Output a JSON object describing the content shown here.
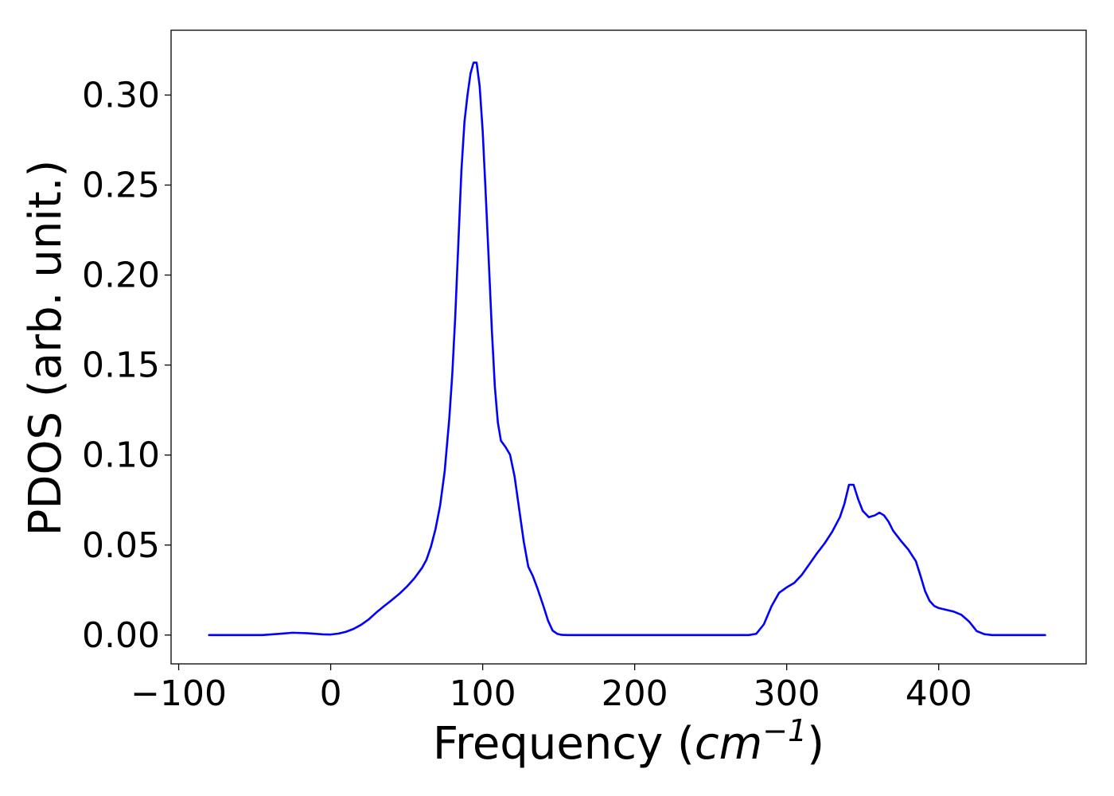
{
  "chart_data": {
    "type": "line",
    "title": "",
    "xlabel_prefix": "Frequency (",
    "xlabel_unit_base": "cm",
    "xlabel_unit_exponent": "−1",
    "xlabel_suffix": ")",
    "ylabel": "PDOS (arb. unit.)",
    "xlim": [
      -105,
      497
    ],
    "ylim": [
      -0.016,
      0.336
    ],
    "grid": false,
    "legend": "none",
    "xticks": [
      -100,
      0,
      100,
      200,
      300,
      400
    ],
    "xtick_labels": [
      "−100",
      "0",
      "100",
      "200",
      "300",
      "400"
    ],
    "yticks": [
      0.0,
      0.05,
      0.1,
      0.15,
      0.2,
      0.25,
      0.3
    ],
    "ytick_labels": [
      "0.00",
      "0.05",
      "0.10",
      "0.15",
      "0.20",
      "0.25",
      "0.30"
    ],
    "colors": {
      "line": "#0000ff",
      "frame": "#000000",
      "background": "#ffffff"
    },
    "series": [
      {
        "x": [
          -80,
          -60,
          -45,
          -35,
          -25,
          -15,
          -5,
          0,
          5,
          10,
          15,
          20,
          25,
          30,
          35,
          40,
          45,
          50,
          55,
          60,
          63,
          66,
          69,
          72,
          75,
          78,
          80,
          82,
          84,
          86,
          88,
          90,
          92,
          94,
          96,
          98,
          100,
          102,
          104,
          106,
          108,
          110,
          112,
          115,
          118,
          121,
          124,
          127,
          130,
          133,
          136,
          140,
          143,
          146,
          149,
          152,
          156,
          160,
          180,
          200,
          230,
          260,
          275,
          280,
          285,
          290,
          295,
          300,
          305,
          310,
          315,
          320,
          325,
          330,
          335,
          338,
          341,
          344,
          347,
          350,
          354,
          358,
          361,
          364,
          367,
          370,
          375,
          380,
          385,
          388,
          391,
          394,
          397,
          400,
          405,
          410,
          415,
          420,
          425,
          430,
          435,
          440,
          450,
          470
        ],
        "y": [
          0.0,
          0.0,
          0.0,
          0.0006,
          0.0013,
          0.001,
          0.0004,
          0.0003,
          0.0008,
          0.0018,
          0.0034,
          0.0057,
          0.0087,
          0.0125,
          0.016,
          0.0193,
          0.0228,
          0.0268,
          0.0315,
          0.0372,
          0.0418,
          0.0492,
          0.059,
          0.072,
          0.091,
          0.12,
          0.145,
          0.178,
          0.218,
          0.258,
          0.285,
          0.3,
          0.312,
          0.318,
          0.318,
          0.305,
          0.28,
          0.245,
          0.208,
          0.17,
          0.138,
          0.118,
          0.108,
          0.1045,
          0.1002,
          0.088,
          0.07,
          0.052,
          0.038,
          0.0328,
          0.026,
          0.016,
          0.008,
          0.0025,
          0.0007,
          0.0001,
          0.0,
          0.0,
          0.0,
          0.0,
          0.0,
          0.0,
          0.0,
          0.0007,
          0.006,
          0.016,
          0.0235,
          0.0265,
          0.029,
          0.0335,
          0.0395,
          0.0455,
          0.051,
          0.0575,
          0.0655,
          0.073,
          0.0835,
          0.0835,
          0.0755,
          0.069,
          0.0655,
          0.0665,
          0.068,
          0.0665,
          0.063,
          0.058,
          0.0525,
          0.0475,
          0.041,
          0.033,
          0.0245,
          0.019,
          0.0162,
          0.015,
          0.014,
          0.013,
          0.0112,
          0.0075,
          0.0022,
          0.0005,
          0.0,
          0.0,
          0.0,
          0.0
        ]
      }
    ]
  }
}
